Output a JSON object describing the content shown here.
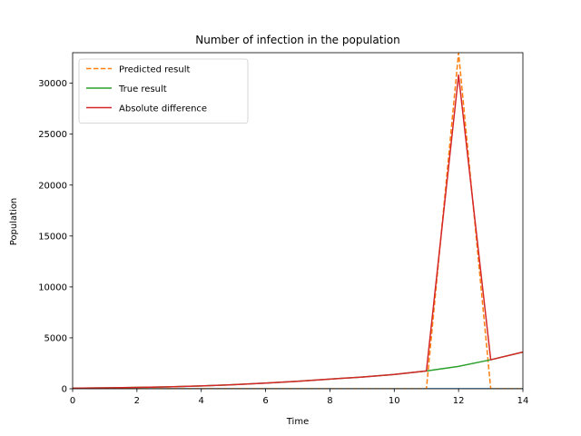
{
  "chart_data": {
    "type": "line",
    "title": "Number of infection in the population",
    "xlabel": "Time",
    "ylabel": "Population",
    "xlim": [
      0,
      14
    ],
    "ylim": [
      0,
      33000
    ],
    "xticks": [
      0,
      2,
      4,
      6,
      8,
      10,
      12,
      14
    ],
    "yticks": [
      0,
      5000,
      10000,
      15000,
      20000,
      25000,
      30000
    ],
    "grid": false,
    "legend_position": "top-left",
    "series": [
      {
        "name": "Predicted result",
        "color": "#ff7f0e",
        "style": "dashed",
        "x": [
          0,
          1,
          2,
          3,
          4,
          5,
          6,
          7,
          8,
          9,
          10,
          11,
          12,
          13,
          14
        ],
        "y": [
          0,
          0,
          0,
          0,
          0,
          0,
          0,
          0,
          0,
          0,
          0,
          0,
          33000,
          0,
          0
        ]
      },
      {
        "name": "True result",
        "color": "#2ca02c",
        "style": "solid",
        "x": [
          0,
          1,
          2,
          3,
          4,
          5,
          6,
          7,
          8,
          9,
          10,
          11,
          12,
          13,
          14
        ],
        "y": [
          60,
          90,
          130,
          190,
          280,
          400,
          560,
          740,
          950,
          1150,
          1400,
          1750,
          2200,
          2850,
          3600
        ]
      },
      {
        "name": "Absolute difference",
        "color": "#d62728",
        "style": "solid",
        "x": [
          0,
          1,
          2,
          3,
          4,
          5,
          6,
          7,
          8,
          9,
          10,
          11,
          12,
          13,
          14
        ],
        "y": [
          60,
          90,
          130,
          190,
          280,
          400,
          560,
          740,
          950,
          1150,
          1400,
          1750,
          30800,
          2850,
          3600
        ]
      },
      {
        "name": "",
        "color": "#1f77b4",
        "style": "solid",
        "legend": false,
        "x": [
          0,
          14
        ],
        "y": [
          0,
          0
        ]
      }
    ]
  }
}
